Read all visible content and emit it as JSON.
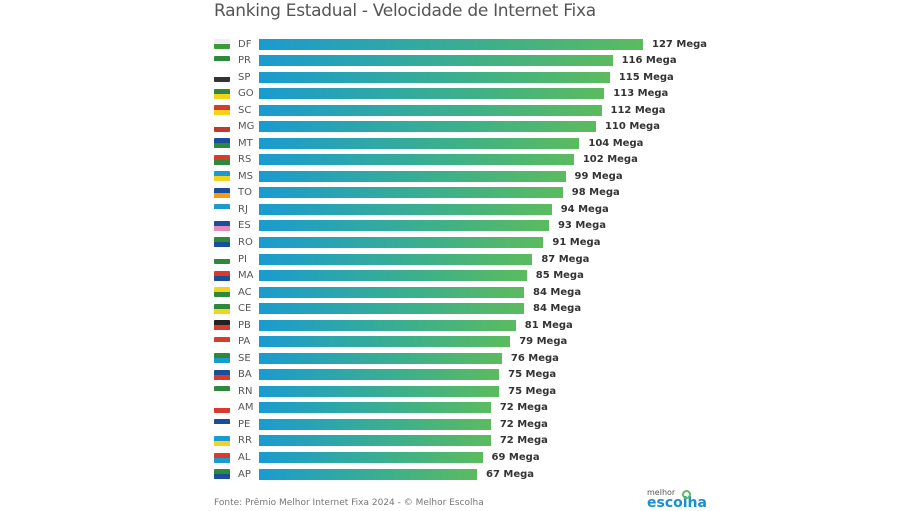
{
  "chart_data": {
    "type": "bar",
    "orientation": "horizontal",
    "title": "Ranking Estadual - Velocidade de Internet Fixa",
    "unit_suffix": " Mega",
    "categories": [
      "DF",
      "PR",
      "SP",
      "GO",
      "SC",
      "MG",
      "MT",
      "RS",
      "MS",
      "TO",
      "RJ",
      "ES",
      "RO",
      "PI",
      "MA",
      "AC",
      "CE",
      "PB",
      "PA",
      "SE",
      "BA",
      "RN",
      "AM",
      "PE",
      "RR",
      "AL",
      "AP"
    ],
    "values": [
      127,
      116,
      115,
      113,
      112,
      110,
      104,
      102,
      99,
      98,
      94,
      93,
      91,
      87,
      85,
      84,
      84,
      81,
      79,
      76,
      75,
      75,
      72,
      72,
      72,
      69,
      67
    ],
    "bar_gradient": [
      "#1a9bd0",
      "#5bbb5e"
    ],
    "flag_colors": [
      [
        "#eee",
        "#3a9a3a"
      ],
      [
        "#2d8a3a",
        "#fff"
      ],
      [
        "#fff",
        "#333"
      ],
      [
        "#2d8a3a",
        "#f4d21e"
      ],
      [
        "#d83b2b",
        "#f4d21e"
      ],
      [
        "#fff",
        "#c0392b"
      ],
      [
        "#1a4d9a",
        "#2d8a3a"
      ],
      [
        "#d83b2b",
        "#2d8a3a"
      ],
      [
        "#1a9bd0",
        "#f4d21e"
      ],
      [
        "#1a4d9a",
        "#f39c12"
      ],
      [
        "#1a9bd0",
        "#fff"
      ],
      [
        "#1a4d9a",
        "#e88ab5"
      ],
      [
        "#2d8a3a",
        "#1a4d9a"
      ],
      [
        "#fff",
        "#2d8a3a"
      ],
      [
        "#d83b2b",
        "#1a4d9a"
      ],
      [
        "#f4d21e",
        "#2d8a3a"
      ],
      [
        "#2d8a3a",
        "#f4d21e"
      ],
      [
        "#222",
        "#d83b2b"
      ],
      [
        "#d83b2b",
        "#fff"
      ],
      [
        "#2d8a3a",
        "#1a9bd0"
      ],
      [
        "#1a4d9a",
        "#d83b2b"
      ],
      [
        "#2d8a3a",
        "#fff"
      ],
      [
        "#fff",
        "#d83b2b"
      ],
      [
        "#1a4d9a",
        "#fff"
      ],
      [
        "#1a9bd0",
        "#f4d21e"
      ],
      [
        "#d83b2b",
        "#1a9bd0"
      ],
      [
        "#2d8a3a",
        "#1a4d9a"
      ]
    ]
  },
  "footer": {
    "source": "Fonte: Prêmio Melhor Internet Fixa 2024 - © Melhor Escolha",
    "logo_line1": "melhor",
    "logo_line2": "escolha"
  }
}
